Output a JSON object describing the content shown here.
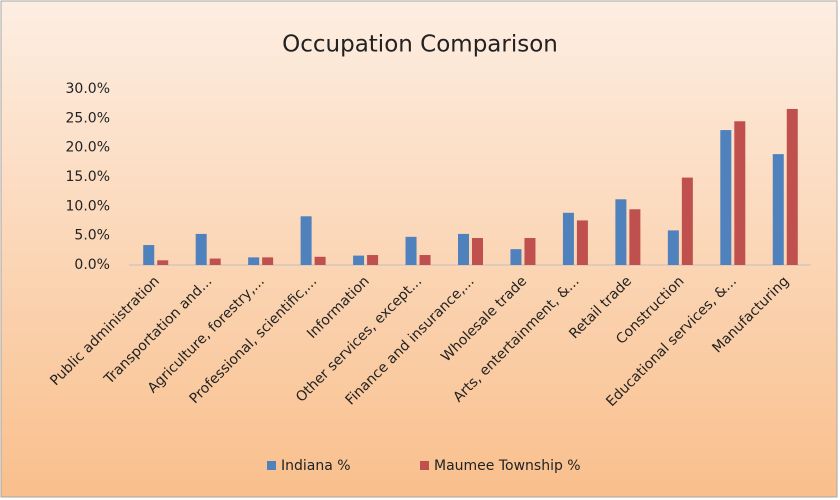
{
  "chart_data": {
    "type": "bar",
    "title": "Occupation Comparison",
    "categories": [
      "Public administration",
      "Transportation and...",
      "Agriculture, forestry,...",
      "Professional, scientific,...",
      "Information",
      "Other services, except...",
      "Finance and insurance,...",
      "Wholesale trade",
      "Arts, entertainment, &...",
      "Retail trade",
      "Construction",
      "Educational services, &...",
      "Manufacturing"
    ],
    "series": [
      {
        "name": "Indiana %",
        "color": "#4f81bd",
        "values": [
          3.4,
          5.3,
          1.3,
          8.3,
          1.6,
          4.8,
          5.3,
          2.7,
          8.9,
          11.2,
          5.9,
          23.0,
          18.9
        ]
      },
      {
        "name": "Maumee Township %",
        "color": "#c0504d",
        "values": [
          0.8,
          1.1,
          1.3,
          1.4,
          1.7,
          1.7,
          4.6,
          4.6,
          7.6,
          9.5,
          14.9,
          24.5,
          26.6
        ]
      }
    ],
    "ylim": [
      0,
      30
    ],
    "yticks": [
      {
        "value": 0,
        "label": "0.0%"
      },
      {
        "value": 5,
        "label": "5.0%"
      },
      {
        "value": 10,
        "label": "10.0%"
      },
      {
        "value": 15,
        "label": "15.0%"
      },
      {
        "value": 20,
        "label": "20.0%"
      },
      {
        "value": 25,
        "label": "25.0%"
      },
      {
        "value": 30,
        "label": "30.0%"
      }
    ],
    "grid": false,
    "legend": "bottom"
  }
}
